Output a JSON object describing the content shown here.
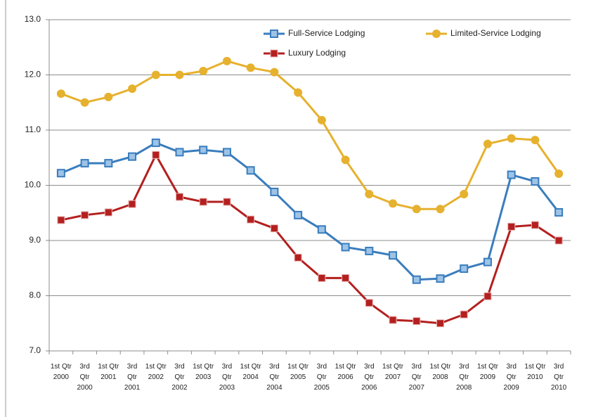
{
  "chart_data": {
    "type": "line",
    "categories": [
      "1st Qtr 2000",
      "3rd Qtr 2000",
      "1st Qtr 2001",
      "3rd Qtr 2001",
      "1st Qtr 2002",
      "3rd Qtr 2002",
      "1st Qtr 2003",
      "3rd Qtr 2003",
      "1st Qtr 2004",
      "3rd Qtr 2004",
      "1st Qtr 2005",
      "3rd Qtr 2005",
      "1st Qtr 2006",
      "3rd Qtr 2006",
      "1st Qtr 2007",
      "3rd Qtr 2007",
      "1st Qtr 2008",
      "3rd Qtr 2008",
      "1st Qtr 2009",
      "3rd Qtr 2009",
      "1st Qtr 2010",
      "3rd Qtr 2010"
    ],
    "series": [
      {
        "name": "Full-Service Lodging",
        "color": "#3a7dbd",
        "marker": "square-x",
        "values": [
          10.22,
          10.4,
          10.4,
          10.52,
          10.77,
          10.6,
          10.64,
          10.6,
          10.27,
          9.88,
          9.46,
          9.2,
          8.88,
          8.81,
          8.73,
          8.29,
          8.31,
          8.49,
          8.61,
          10.19,
          10.07,
          9.51
        ]
      },
      {
        "name": "Limited-Service Lodging",
        "color": "#e6b12e",
        "marker": "circle",
        "values": [
          11.66,
          11.5,
          11.6,
          11.75,
          12.0,
          12.0,
          12.07,
          12.25,
          12.13,
          12.05,
          11.68,
          11.18,
          10.46,
          9.84,
          9.67,
          9.57,
          9.57,
          9.84,
          10.75,
          10.85,
          10.82,
          10.21
        ]
      },
      {
        "name": "Luxury Lodging",
        "color": "#b3201f",
        "marker": "square",
        "values": [
          9.37,
          9.46,
          9.51,
          9.66,
          10.55,
          9.79,
          9.7,
          9.7,
          9.38,
          9.22,
          8.69,
          8.32,
          8.32,
          7.87,
          7.56,
          7.54,
          7.5,
          7.66,
          7.99,
          9.25,
          9.28,
          9.0
        ]
      }
    ],
    "ylim": [
      7,
      13
    ],
    "yticks": [
      {
        "value": 7,
        "label": "7.0"
      },
      {
        "value": 8,
        "label": "8.0"
      },
      {
        "value": 9,
        "label": "9.0"
      },
      {
        "value": 10,
        "label": "10.0"
      },
      {
        "value": 11,
        "label": "11.0"
      },
      {
        "value": 12,
        "label": "12.0"
      },
      {
        "value": 13,
        "label": "13.0"
      }
    ],
    "grid": true
  }
}
